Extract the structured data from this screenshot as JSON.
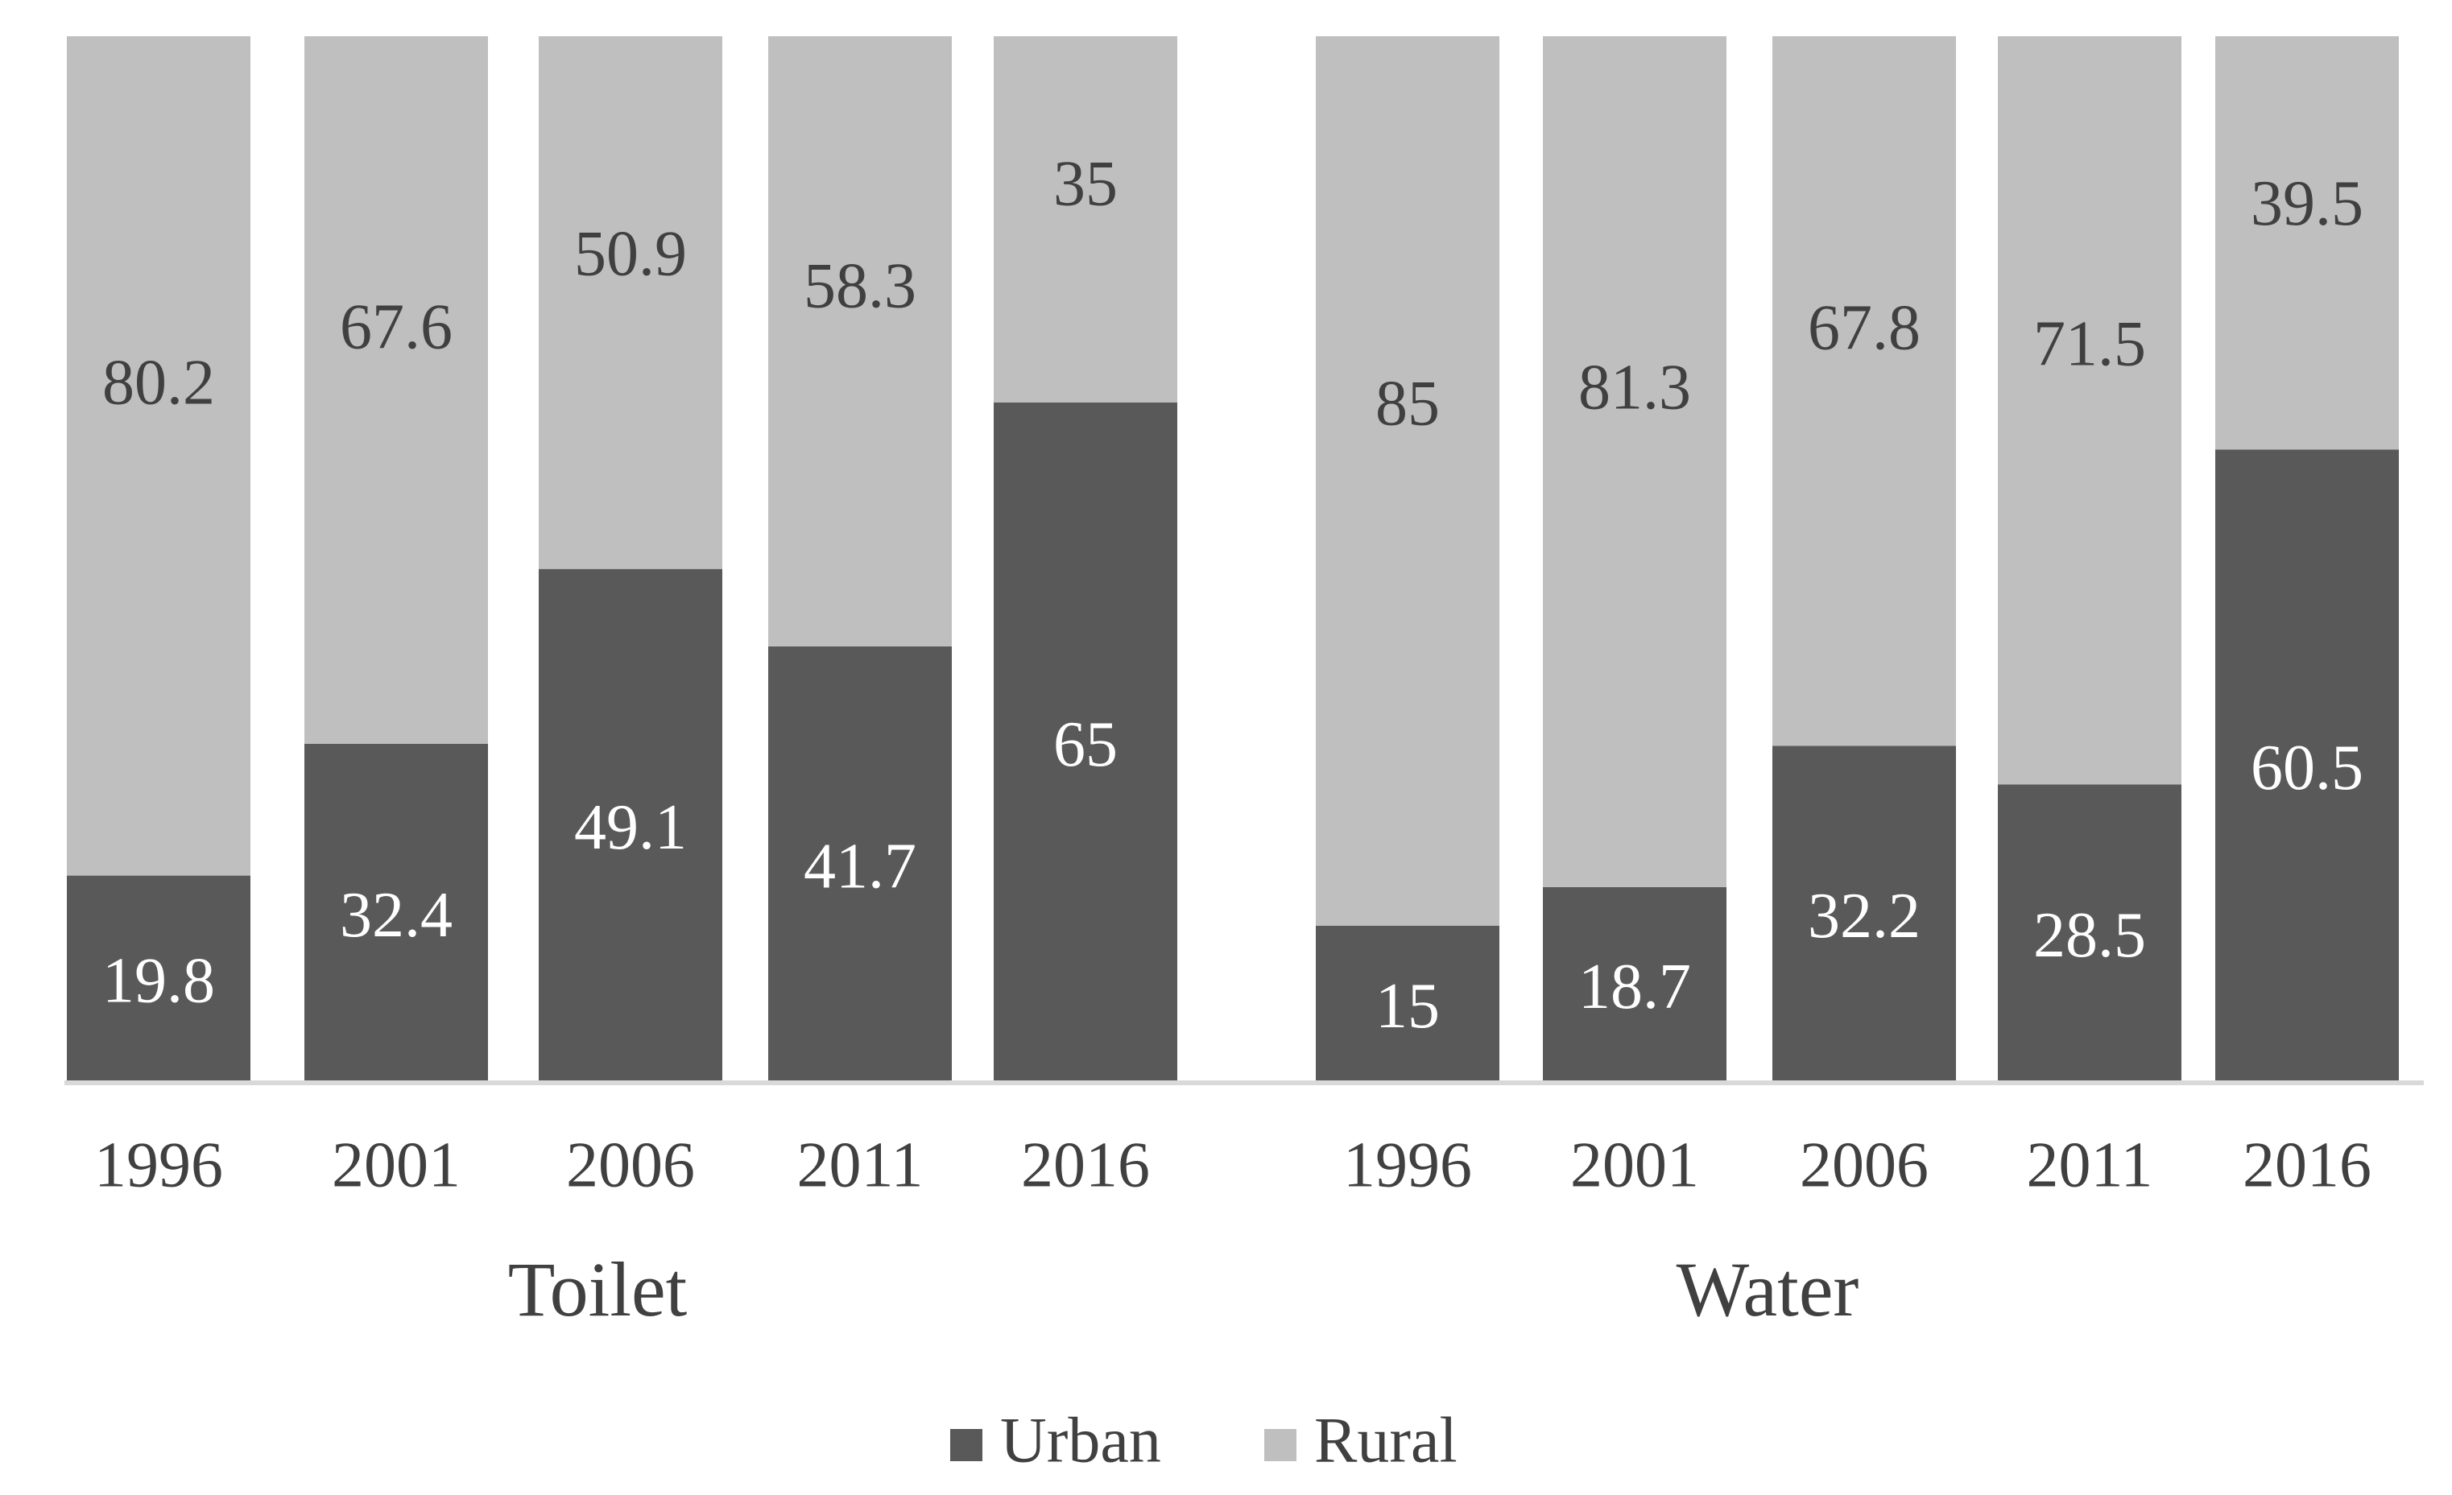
{
  "chart_data": {
    "type": "bar",
    "stacked": true,
    "groups": [
      {
        "name": "Toilet",
        "categories": [
          "1996",
          "2001",
          "2006",
          "2011",
          "2016"
        ],
        "series": [
          {
            "name": "Urban",
            "values": [
              19.8,
              32.4,
              49.1,
              41.7,
              65
            ]
          },
          {
            "name": "Rural",
            "values": [
              80.2,
              67.6,
              50.9,
              58.3,
              35
            ]
          }
        ]
      },
      {
        "name": "Water",
        "categories": [
          "1996",
          "2001",
          "2006",
          "2011",
          "2016"
        ],
        "series": [
          {
            "name": "Urban",
            "values": [
              15,
              18.7,
              32.2,
              28.5,
              60.5
            ]
          },
          {
            "name": "Rural",
            "values": [
              85,
              81.3,
              67.8,
              71.5,
              39.5
            ]
          }
        ]
      }
    ],
    "ylim": [
      0,
      100
    ],
    "legend": {
      "position": "bottom",
      "entries": [
        {
          "name": "Urban",
          "color": "#595959"
        },
        {
          "name": "Rural",
          "color": "#bfbfbf"
        }
      ]
    },
    "colors": {
      "Urban": "#595959",
      "Rural": "#bfbfbf",
      "urban_label": "#ffffff",
      "rural_label": "#404040",
      "axis": "#d9d9d9"
    }
  }
}
